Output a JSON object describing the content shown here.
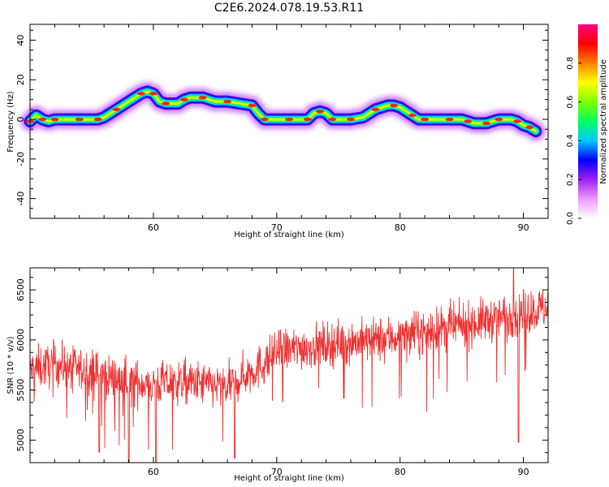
{
  "figure": {
    "title": "C2E6.2024.078.19.53.R11"
  },
  "chart_data": [
    {
      "type": "heatmap",
      "title": "",
      "xlabel": "Height of straight line (km)",
      "ylabel": "Frequency (Hz)",
      "xlim": [
        50,
        92
      ],
      "ylim": [
        -50,
        48
      ],
      "xticks": [
        60,
        70,
        80,
        90
      ],
      "yticks": [
        -40,
        -20,
        0,
        20,
        40
      ],
      "ridge": {
        "x": [
          50,
          50.5,
          51.0,
          51.5,
          52.0,
          53,
          54,
          55,
          55.5,
          56,
          57,
          58,
          59,
          59.5,
          60,
          60.5,
          61,
          62,
          62.5,
          63,
          64,
          65,
          66,
          67,
          68,
          68.5,
          69,
          70,
          71,
          72,
          72.5,
          73,
          73.5,
          74,
          74.5,
          75,
          76,
          77,
          78,
          79,
          79.5,
          80,
          81,
          81.5,
          82,
          83,
          84,
          85,
          85.5,
          86,
          87,
          87.5,
          88,
          89,
          89.5,
          90,
          90.5,
          91
        ],
        "freq_hz": [
          -1,
          2,
          0,
          -1,
          0,
          0,
          0,
          0,
          0,
          1,
          5,
          9,
          13,
          14,
          13,
          9,
          8,
          8,
          10,
          11,
          11,
          9,
          9,
          8,
          7,
          3,
          0,
          0,
          0,
          0,
          0,
          3,
          4,
          3,
          0,
          0,
          0,
          1,
          5,
          7,
          7,
          6,
          2,
          0,
          0,
          0,
          0,
          0,
          -1,
          -2,
          -2,
          -1,
          0,
          0,
          -1,
          -3,
          -4,
          -6
        ]
      },
      "colorbar": {
        "label": "Normalized spectral amplitude",
        "range": [
          0,
          1
        ],
        "ticks": [
          0.0,
          0.2,
          0.4,
          0.6,
          0.8
        ],
        "tick_labels": [
          "0.0",
          "0.2",
          "0.4",
          "0.6",
          "0.8"
        ],
        "colors": [
          "#ffffff",
          "#ee99ff",
          "#a020f0",
          "#0000ff",
          "#00c8ff",
          "#00ff60",
          "#80ff00",
          "#ffff00",
          "#ff8000",
          "#ff0000",
          "#ff0080"
        ]
      }
    },
    {
      "type": "line",
      "title": "",
      "xlabel": "Height of straight line (km)",
      "ylabel": "SNR (10 * v/v)",
      "xlim": [
        50,
        92
      ],
      "ylim": [
        4775,
        6720
      ],
      "xticks": [
        60,
        70,
        80,
        90
      ],
      "yticks": [
        5000,
        5500,
        6000,
        6500
      ],
      "color": "#ee3333",
      "trend": {
        "x": [
          50,
          52,
          55,
          58,
          60,
          62,
          64,
          66,
          67,
          69,
          70,
          72,
          75,
          78,
          80,
          82,
          84,
          86,
          88,
          90,
          92
        ],
        "snr": [
          5700,
          5760,
          5680,
          5580,
          5560,
          5580,
          5560,
          5520,
          5620,
          5760,
          5880,
          5920,
          5970,
          6000,
          6040,
          6080,
          6120,
          6170,
          6220,
          6280,
          6320
        ]
      },
      "spikes": {
        "x": [
          55.6,
          58.0,
          60.2,
          66.6,
          89.6,
          89.2
        ],
        "snr": [
          4880,
          4780,
          4760,
          4820,
          4980,
          6720
        ]
      }
    }
  ]
}
